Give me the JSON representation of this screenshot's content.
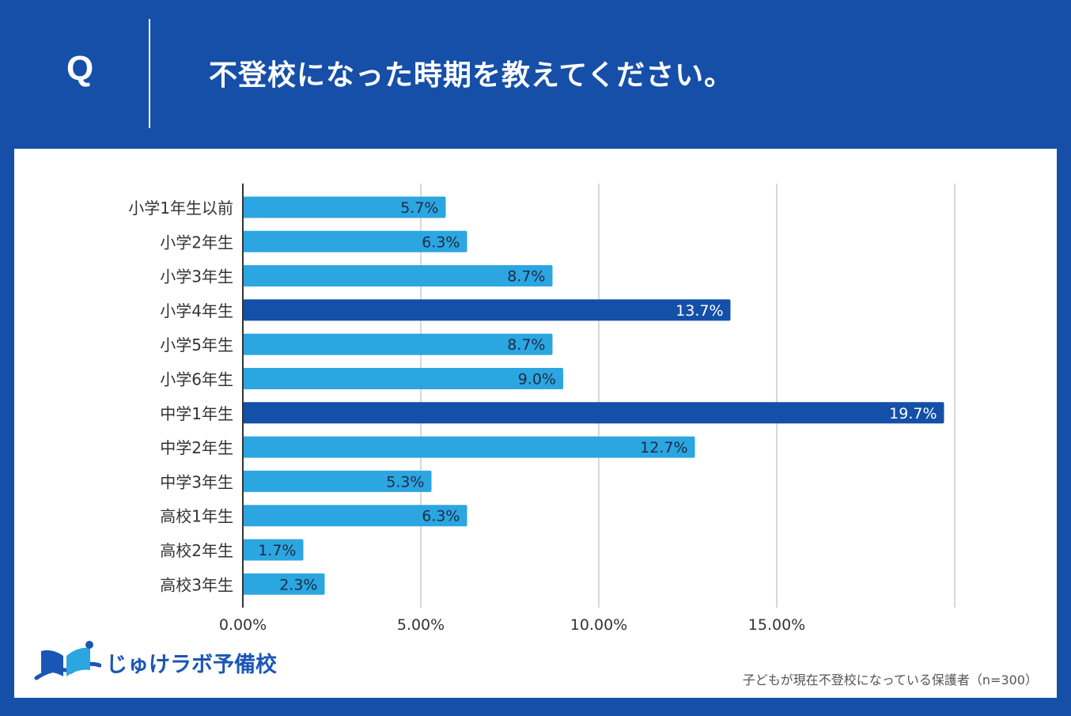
{
  "header": {
    "q_label": "Q",
    "question": "不登校になった時期を教えてください。"
  },
  "brand": {
    "name": "じゅけラボ予備校",
    "logo_icon": "open-book-icon"
  },
  "footnote": "子どもが現在不登校になっている保護者（n=300）",
  "colors": {
    "background": "#164fa8",
    "bar_default": "#2ba6e1",
    "bar_highlight": "#1450a8",
    "gridline": "#cccccc",
    "axis": "#333333"
  },
  "chart_data": {
    "type": "bar",
    "orientation": "horizontal",
    "categories": [
      "小学1年生以前",
      "小学2年生",
      "小学3年生",
      "小学4年生",
      "小学5年生",
      "小学6年生",
      "中学1年生",
      "中学2年生",
      "中学3年生",
      "高校1年生",
      "高校2年生",
      "高校3年生"
    ],
    "values": [
      5.7,
      6.3,
      8.7,
      13.7,
      8.7,
      9.0,
      19.7,
      12.7,
      5.3,
      6.3,
      1.7,
      2.3
    ],
    "value_labels": [
      "5.7%",
      "6.3%",
      "8.7%",
      "13.7%",
      "8.7%",
      "9.0%",
      "19.7%",
      "12.7%",
      "5.3%",
      "6.3%",
      "1.7%",
      "2.3%"
    ],
    "highlighted": [
      false,
      false,
      false,
      true,
      false,
      false,
      true,
      false,
      false,
      false,
      false,
      false
    ],
    "x_ticks": [
      0,
      5,
      10,
      15
    ],
    "x_tick_labels": [
      "0.00%",
      "5.00%",
      "10.00%",
      "15.00%"
    ],
    "xlim": [
      0,
      20
    ],
    "grid": true,
    "title": "",
    "xlabel": "",
    "ylabel": ""
  }
}
